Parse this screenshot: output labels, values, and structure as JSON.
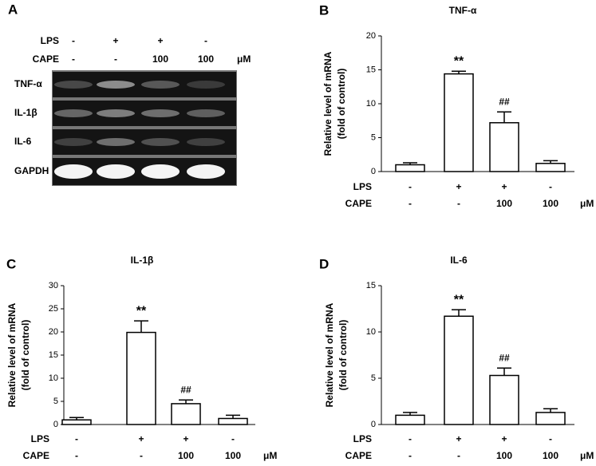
{
  "panel_a": {
    "label": "A",
    "treatments": [
      {
        "name": "LPS",
        "values": [
          "-",
          "+",
          "+",
          "-"
        ]
      },
      {
        "name": "CAPE",
        "values": [
          "-",
          "-",
          "100",
          "100"
        ]
      }
    ],
    "unit": "μM",
    "bands": [
      "TNF-α",
      "IL-1β",
      "IL-6",
      "GAPDH"
    ]
  },
  "chart_data": [
    {
      "panel": "B",
      "type": "bar",
      "title": "TNF-α",
      "ylabel": [
        "Relative level of mRNA",
        "(fold of control)"
      ],
      "values": [
        1.0,
        14.4,
        7.2,
        1.2
      ],
      "errors": [
        0.3,
        0.4,
        1.6,
        0.4
      ],
      "annotations": [
        null,
        "**",
        "##",
        null
      ],
      "color": "#ffffff",
      "ylim": [
        0,
        20
      ],
      "yticks": [
        0,
        5,
        10,
        15,
        20
      ],
      "treatments": [
        {
          "name": "LPS",
          "values": [
            "-",
            "+",
            "+",
            "-"
          ]
        },
        {
          "name": "CAPE",
          "values": [
            "-",
            "-",
            "100",
            "100"
          ]
        }
      ],
      "unit": "μM"
    },
    {
      "panel": "C",
      "type": "bar",
      "title": "IL-1β",
      "ylabel": [
        "Relative level of mRNA",
        "(fold of control)"
      ],
      "values": [
        1.0,
        19.9,
        4.5,
        1.3
      ],
      "errors": [
        0.5,
        2.5,
        0.8,
        0.7
      ],
      "annotations": [
        null,
        "**",
        "##",
        null
      ],
      "color": "#ffffff",
      "ylim": [
        0,
        30
      ],
      "yticks": [
        0,
        5,
        10,
        15,
        20,
        25,
        30
      ],
      "treatments": [
        {
          "name": "LPS",
          "values": [
            "-",
            "+",
            "+",
            "-"
          ]
        },
        {
          "name": "CAPE",
          "values": [
            "-",
            "-",
            "100",
            "100"
          ]
        }
      ],
      "unit": "μM"
    },
    {
      "panel": "D",
      "type": "bar",
      "title": "IL-6",
      "ylabel": [
        "Relative level of mRNA",
        "(fold of control)"
      ],
      "values": [
        1.0,
        11.7,
        5.3,
        1.3
      ],
      "errors": [
        0.3,
        0.7,
        0.8,
        0.4
      ],
      "annotations": [
        null,
        "**",
        "##",
        null
      ],
      "color": "#ffffff",
      "ylim": [
        0,
        15
      ],
      "yticks": [
        0,
        5,
        10,
        15
      ],
      "treatments": [
        {
          "name": "LPS",
          "values": [
            "-",
            "+",
            "+",
            "-"
          ]
        },
        {
          "name": "CAPE",
          "values": [
            "-",
            "-",
            "100",
            "100"
          ]
        }
      ],
      "unit": "μM"
    }
  ]
}
